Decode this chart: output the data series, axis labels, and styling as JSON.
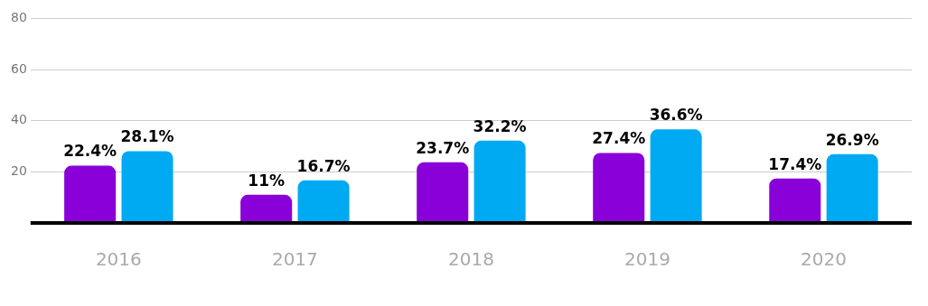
{
  "chart_data": {
    "type": "bar",
    "categories": [
      "2016",
      "2017",
      "2018",
      "2019",
      "2020"
    ],
    "series": [
      {
        "color": "#8a00d8",
        "values": [
          22.4,
          11,
          23.7,
          27.4,
          17.4
        ],
        "value_labels": [
          "22.4%",
          "11%",
          "23.7%",
          "27.4%",
          "17.4%"
        ]
      },
      {
        "color": "#00aaf2",
        "values": [
          28.1,
          16.7,
          32.2,
          36.6,
          26.9
        ],
        "value_labels": [
          "28.1%",
          "16.7%",
          "32.2%",
          "36.6%",
          "26.9%"
        ]
      }
    ],
    "ylim": [
      0,
      80
    ],
    "yticks": [
      20,
      40,
      60,
      80
    ],
    "grid": "y",
    "legend": false
  }
}
